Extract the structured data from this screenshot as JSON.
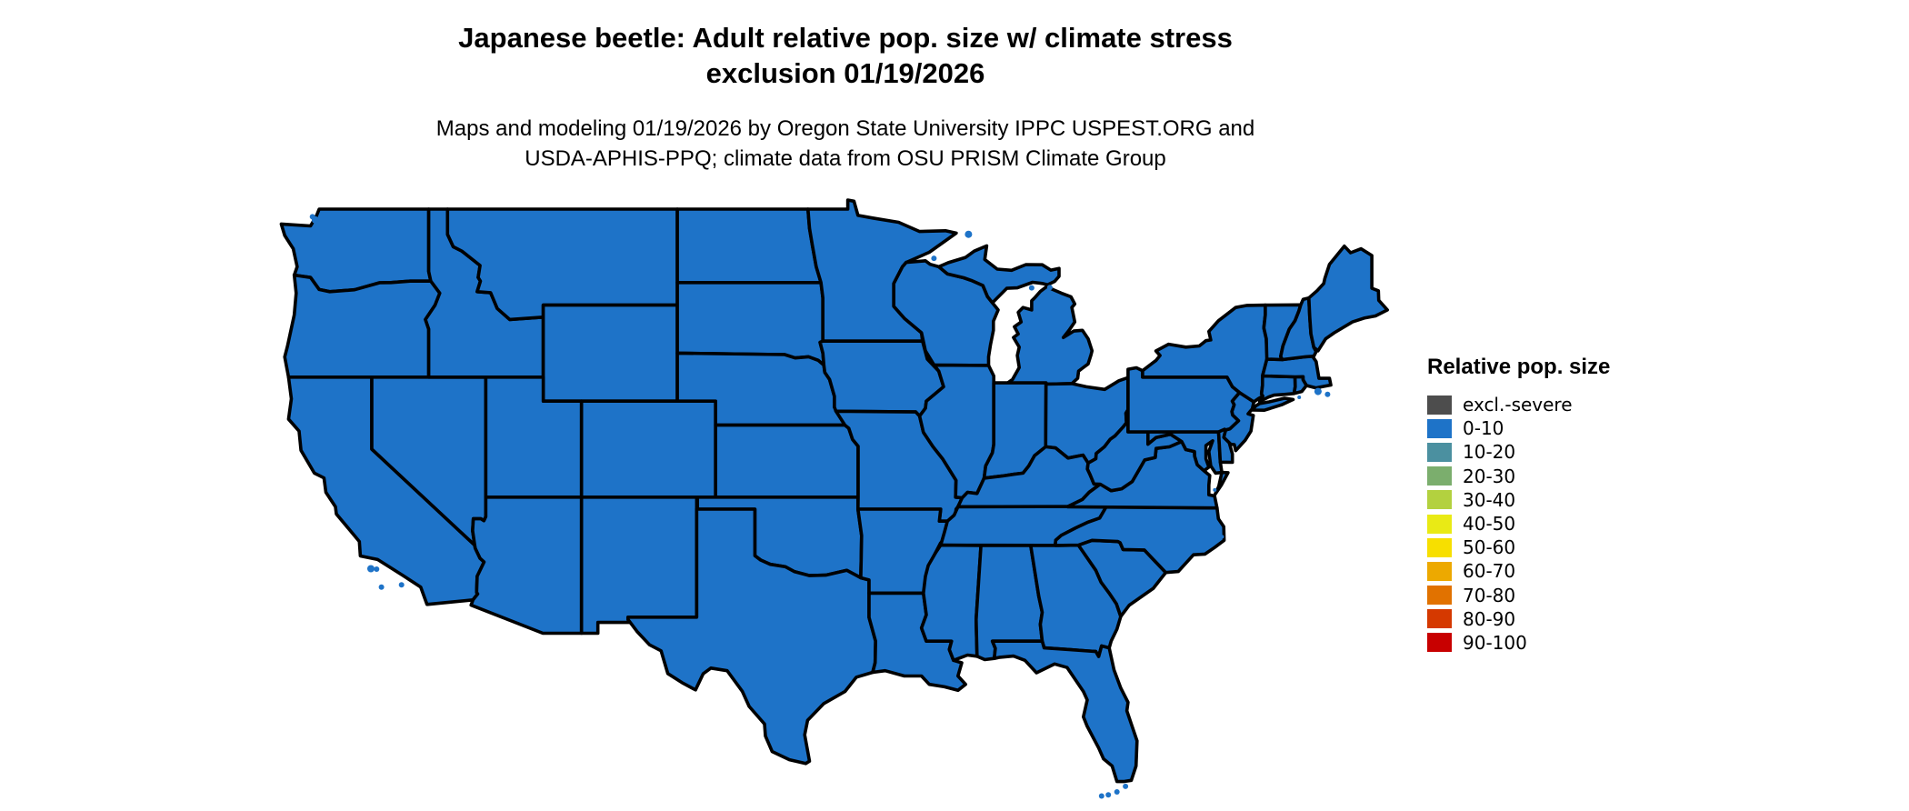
{
  "header": {
    "title_line1": "Japanese beetle: Adult relative pop. size w/ climate stress",
    "title_line2": "exclusion 01/19/2026",
    "subtitle_line1": "Maps and modeling 01/19/2026 by Oregon State University IPPC USPEST.ORG and",
    "subtitle_line2": "USDA-APHIS-PPQ; climate data from OSU PRISM Climate Group"
  },
  "legend": {
    "title": "Relative pop. size",
    "entries": [
      {
        "label": "excl.-severe",
        "color": "#4D4D4D"
      },
      {
        "label": "0-10",
        "color": "#1E73C8"
      },
      {
        "label": "10-20",
        "color": "#4B90A0"
      },
      {
        "label": "20-30",
        "color": "#7BAE6D"
      },
      {
        "label": "30-40",
        "color": "#B3D13F"
      },
      {
        "label": "40-50",
        "color": "#E9EA15"
      },
      {
        "label": "50-60",
        "color": "#F7DF00"
      },
      {
        "label": "60-70",
        "color": "#EDA900"
      },
      {
        "label": "70-80",
        "color": "#E17200"
      },
      {
        "label": "80-90",
        "color": "#D53900"
      },
      {
        "label": "90-100",
        "color": "#C80000"
      }
    ]
  },
  "map": {
    "uniform_class": "0-10",
    "fill_color": "#1E73C8",
    "border_color": "#000000",
    "background": "#ffffff"
  }
}
